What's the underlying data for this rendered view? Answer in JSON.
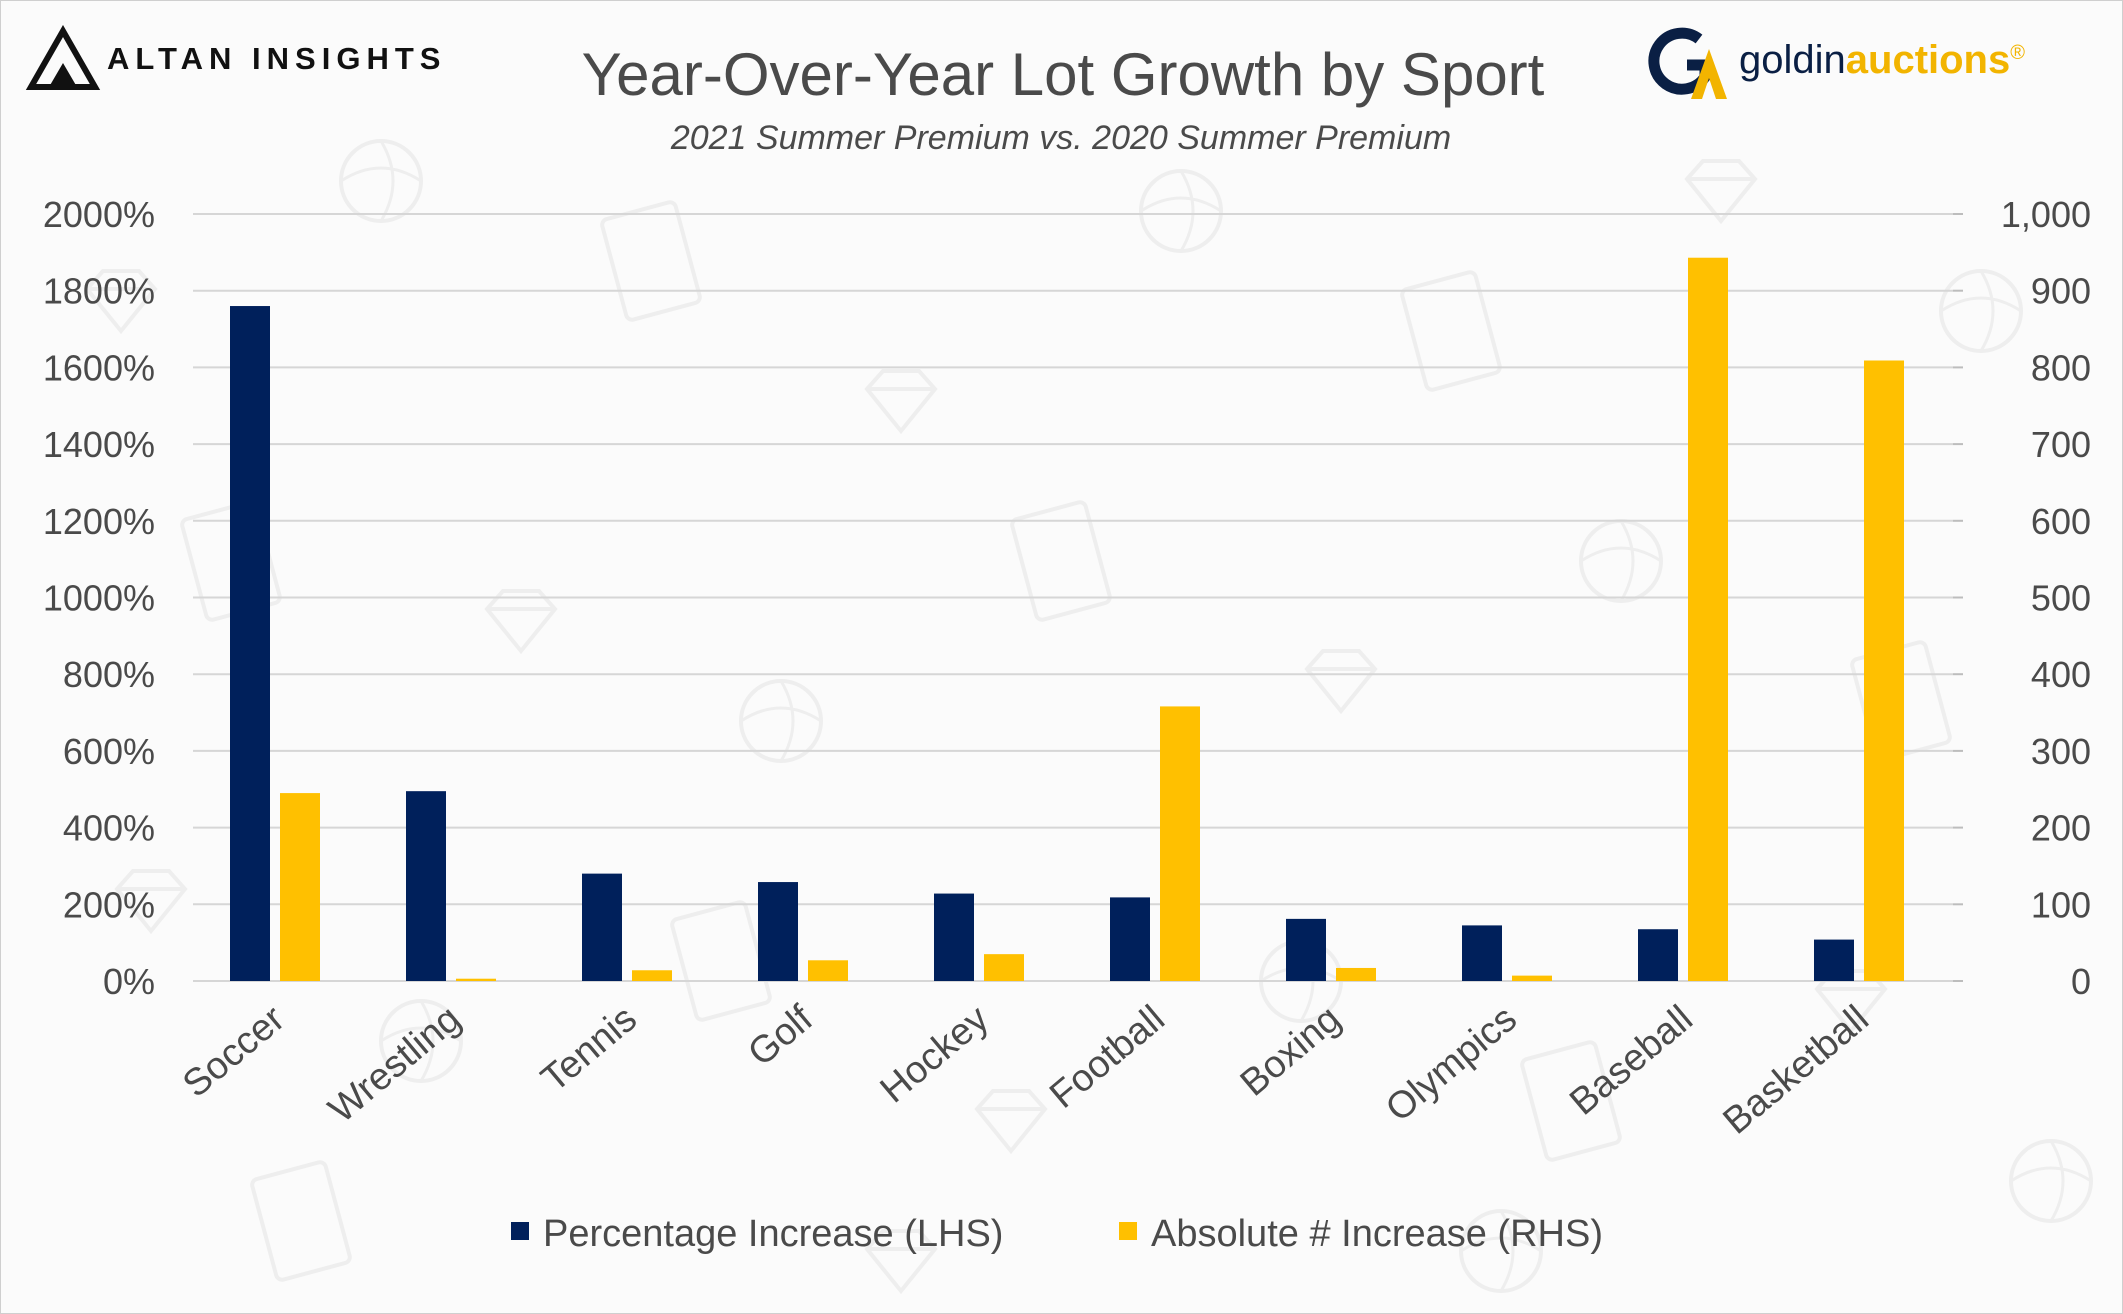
{
  "branding": {
    "left_logo": {
      "mark": "altan-triangle-icon",
      "text": "ALTAN INSIGHTS"
    },
    "right_logo": {
      "mark": "ga-monogram-icon",
      "text_light": "goldin",
      "text_bold": "auctions",
      "trademark": "®"
    }
  },
  "colors": {
    "series_lhs": "#00205b",
    "series_rhs": "#ffc000",
    "text": "#4a4a4a",
    "grid": "#d6d6d6",
    "logo_gold": "#f2b400",
    "logo_navy": "#0a1f44"
  },
  "chart_data": {
    "type": "bar",
    "title": "Year-Over-Year Lot Growth by Sport",
    "subtitle": "2021 Summer Premium vs. 2020 Summer Premium",
    "categories": [
      "Soccer",
      "Wrestling",
      "Tennis",
      "Golf",
      "Hockey",
      "Football",
      "Boxing",
      "Olympics",
      "Baseball",
      "Basketball"
    ],
    "series": [
      {
        "name": "Percentage Increase (LHS)",
        "axis": "left",
        "values": [
          1760,
          495,
          280,
          258,
          228,
          218,
          162,
          145,
          135,
          108
        ]
      },
      {
        "name": "Absolute # Increase (RHS)",
        "axis": "right",
        "values": [
          245,
          3,
          14,
          27,
          35,
          358,
          17,
          7,
          943,
          809
        ]
      }
    ],
    "left_axis": {
      "min": 0,
      "max": 2000,
      "ticks": [
        "0%",
        "200%",
        "400%",
        "600%",
        "800%",
        "1000%",
        "1200%",
        "1400%",
        "1600%",
        "1800%",
        "2000%"
      ]
    },
    "right_axis": {
      "min": 0,
      "max": 1000,
      "ticks": [
        "0",
        "100",
        "200",
        "300",
        "400",
        "500",
        "600",
        "700",
        "800",
        "900",
        "1,000"
      ]
    },
    "grid": true,
    "legend_position": "bottom-center"
  }
}
